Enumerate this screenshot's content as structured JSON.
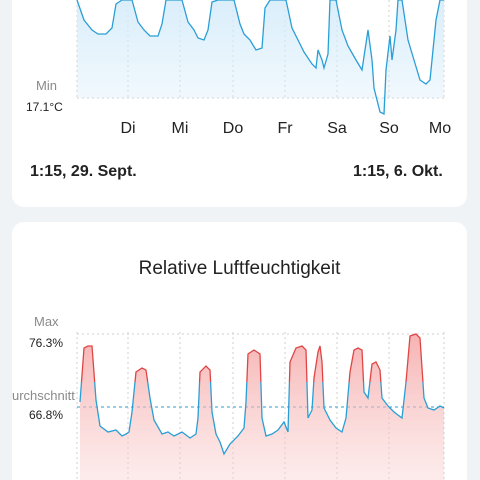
{
  "temperature_card": {
    "min_label": "Min",
    "min_value": "17.1°C",
    "days": [
      "Di",
      "Mi",
      "Do",
      "Fr",
      "Sa",
      "So",
      "Mo"
    ],
    "range_start": "1:15,  29. Sept.",
    "range_end": "1:15,  6. Okt.",
    "line_color": "#2a9fd6",
    "fill_color": "#d6ecfa"
  },
  "humidity_card": {
    "title": "Relative Luftfeuchtigkeit",
    "max_label": "Max",
    "max_value": "76.3%",
    "avg_label": "urchschnitt",
    "avg_value": "66.8%",
    "line_color": "#2a9fd6",
    "high_color": "#e04545",
    "fill_color": "#fbd6d6"
  },
  "chart_data": [
    {
      "type": "line",
      "title": "",
      "ylabel": "",
      "min": 17.1,
      "unit": "°C",
      "x_categories": [
        "Di",
        "Mi",
        "Do",
        "Fr",
        "Sa",
        "So",
        "Mo"
      ]
    },
    {
      "type": "line",
      "title": "Relative Luftfeuchtigkeit",
      "ylabel": "",
      "max": 76.3,
      "average": 66.8,
      "unit": "%"
    }
  ]
}
